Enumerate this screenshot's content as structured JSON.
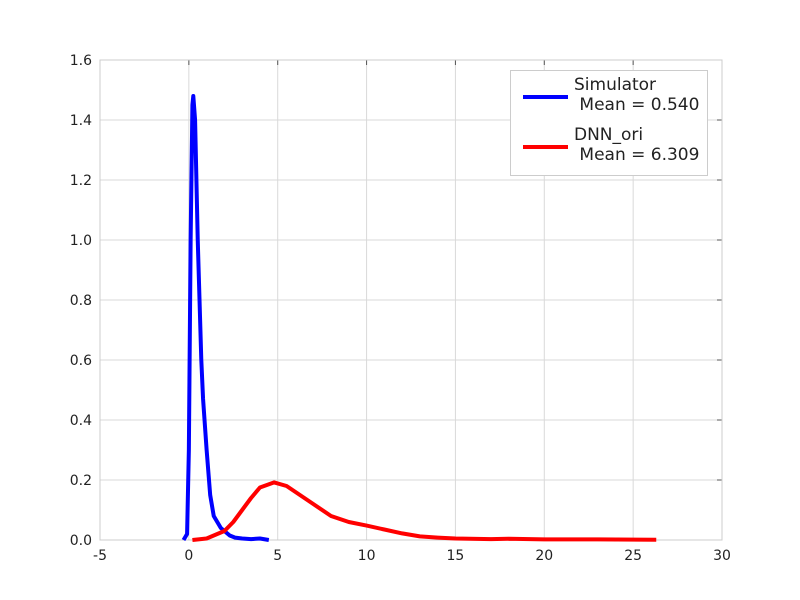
{
  "chart_data": {
    "type": "line",
    "series": [
      {
        "name": "Simulator\n Mean = 0.540",
        "color": "#0000ff",
        "x": [
          -0.3,
          -0.1,
          0,
          0.1,
          0.2,
          0.25,
          0.35,
          0.5,
          0.7,
          0.8,
          1.0,
          1.2,
          1.4,
          1.6,
          1.8,
          2.0,
          2.3,
          2.6,
          3.0,
          3.5,
          4.0,
          4.5
        ],
        "values": [
          0,
          0.02,
          0.3,
          1.0,
          1.45,
          1.48,
          1.4,
          1.0,
          0.6,
          0.47,
          0.3,
          0.15,
          0.08,
          0.06,
          0.04,
          0.03,
          0.015,
          0.008,
          0.005,
          0.003,
          0.005,
          0
        ]
      },
      {
        "name": "DNN_ori\n Mean = 6.309",
        "color": "#ff0000",
        "x": [
          0.2,
          1,
          2,
          2.5,
          3,
          3.5,
          4,
          4.8,
          5.5,
          6,
          7,
          8,
          9,
          10,
          11,
          12,
          13,
          14,
          15,
          17,
          18,
          20,
          23,
          26.3
        ],
        "values": [
          0,
          0.005,
          0.03,
          0.06,
          0.1,
          0.14,
          0.175,
          0.192,
          0.18,
          0.16,
          0.12,
          0.08,
          0.06,
          0.048,
          0.035,
          0.022,
          0.012,
          0.008,
          0.005,
          0.003,
          0.004,
          0.002,
          0.002,
          0.001
        ]
      }
    ],
    "xlim": [
      -5,
      30
    ],
    "xticks": [
      -5,
      0,
      5,
      10,
      15,
      20,
      25,
      30
    ],
    "ylim": [
      0,
      1.6
    ],
    "yticks": [
      {
        "value": 0,
        "label": "0.0"
      },
      0.2,
      0.4,
      0.6,
      0.8,
      {
        "value": 1,
        "label": "1.0"
      },
      1.2,
      1.4,
      1.6
    ],
    "grid": true,
    "legend": "upper right"
  }
}
